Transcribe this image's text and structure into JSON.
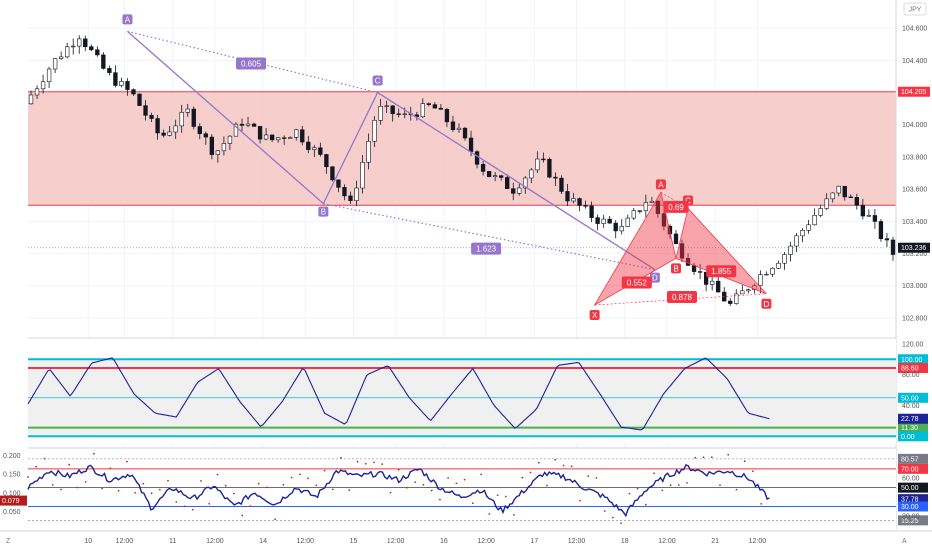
{
  "header": {
    "currency": "JPY"
  },
  "corner_labels": {
    "left": "Z",
    "right": "A"
  },
  "chart_data": [
    {
      "type": "candlestick",
      "panel": "price",
      "ylim": [
        102.7,
        104.75
      ],
      "y_ticks": [
        104.6,
        104.4,
        104.2,
        104.0,
        103.8,
        103.6,
        103.4,
        103.2,
        103.0,
        102.8
      ],
      "y_tick_labels": [
        "104.600",
        "104.400",
        "104.200",
        "104.000",
        "103.800",
        "103.600",
        "103.400",
        "103.200",
        "103.000",
        "102.800"
      ],
      "price_tags": [
        {
          "value": 104.205,
          "label": "104.205",
          "color": "#f23645"
        },
        {
          "value": 103.236,
          "label": "103.236",
          "color": "#131722"
        }
      ],
      "supply_zone": {
        "top": 104.205,
        "bottom": 103.5,
        "color": "#f4c7c3",
        "border": "#f23645"
      },
      "last_price": 103.236,
      "bars": 144,
      "path": [
        104.13,
        104.38,
        104.56,
        104.32,
        104.18,
        103.92,
        104.08,
        103.82,
        104.02,
        103.9,
        103.96,
        103.78,
        103.5,
        104.1,
        104.05,
        104.12,
        103.95,
        103.7,
        103.6,
        103.78,
        103.55,
        103.42,
        103.35,
        103.55,
        103.25,
        103.05,
        102.88,
        103.05,
        103.2,
        103.42,
        103.6,
        103.45,
        103.2
      ],
      "xlim": [
        0,
        144
      ],
      "x_ticks": [
        10,
        16,
        24,
        31,
        39,
        46,
        54,
        61,
        69,
        76,
        84,
        91,
        99,
        106,
        114,
        121
      ],
      "x_tick_labels": [
        "10",
        "12:00",
        "11",
        "12:00",
        "14",
        "12:00",
        "15",
        "12:00",
        "16",
        "12:00",
        "17",
        "12:00",
        "18",
        "12:00",
        "21",
        "12:00"
      ],
      "bearish_pattern": {
        "points": [
          {
            "label": "A",
            "x": 16.5,
            "y": 104.58
          },
          {
            "label": "B",
            "x": 49,
            "y": 103.51
          },
          {
            "label": "C",
            "x": 58,
            "y": 104.2
          },
          {
            "label": "D",
            "x": 104,
            "y": 103.1
          }
        ],
        "ratios": [
          {
            "label": "0.605",
            "x": 37,
            "y": 104.38
          },
          {
            "label": "1.623",
            "x": 76,
            "y": 103.23
          }
        ],
        "color": "#9575cd"
      },
      "harmonic_pattern": {
        "points": [
          {
            "label": "X",
            "x": 94,
            "y": 102.88
          },
          {
            "label": "A",
            "x": 105,
            "y": 103.58
          },
          {
            "label": "B",
            "x": 107.5,
            "y": 103.17
          },
          {
            "label": "C",
            "x": 109.5,
            "y": 103.48
          },
          {
            "label": "D",
            "x": 122.5,
            "y": 102.95
          }
        ],
        "ratios": [
          {
            "label": "0.552",
            "x": 101,
            "y": 103.02
          },
          {
            "label": "0.69",
            "x": 107.5,
            "y": 103.49
          },
          {
            "label": "1.855",
            "x": 115,
            "y": 103.09
          },
          {
            "label": "0.878",
            "x": 108.5,
            "y": 102.93
          }
        ],
        "color": "#f23645"
      }
    },
    {
      "type": "line",
      "panel": "oscillator_1",
      "ylim": [
        -10,
        125
      ],
      "y_ticks": [
        120,
        80,
        40
      ],
      "y_tick_labels": [
        "120.00",
        "80.00",
        "40.00"
      ],
      "levels": [
        {
          "value": 100,
          "label": "100.00",
          "color": "#00bcd4"
        },
        {
          "value": 88.6,
          "label": "88.60",
          "color": "#f23645"
        },
        {
          "value": 50,
          "label": "50.00",
          "color": "#00bcd4"
        },
        {
          "value": 11.3,
          "label": "11.30",
          "color": "#4caf50"
        },
        {
          "value": 0,
          "label": "0.00",
          "color": "#00bcd4"
        }
      ],
      "current": {
        "value": 22.78,
        "label": "22.78"
      },
      "series": [
        {
          "name": "",
          "path": [
            42,
            88,
            52,
            95,
            102,
            55,
            30,
            25,
            70,
            88,
            45,
            12,
            45,
            90,
            30,
            15,
            80,
            92,
            50,
            20,
            55,
            88,
            40,
            10,
            35,
            92,
            96,
            55,
            12,
            8,
            55,
            88,
            102,
            75,
            30,
            22.78
          ]
        }
      ]
    },
    {
      "type": "line",
      "panel": "oscillator_2",
      "ylim": [
        0.0,
        0.215
      ],
      "y_ticks": [
        0.2,
        0.15,
        0.1,
        0.05
      ],
      "y_tick_labels": [
        "0.200",
        "0.150",
        "0.100",
        "0.050"
      ],
      "left_tag": {
        "value": 0.079,
        "label": "0.079"
      },
      "levels": [
        {
          "value": 80.57,
          "label": "80.57",
          "color": "#787b86"
        },
        {
          "value": 70.0,
          "label": "70.00",
          "color": "#f23645"
        },
        {
          "value": 50.0,
          "label": "50.00",
          "color": "#131722"
        },
        {
          "value": 37.78,
          "label": "37.78",
          "color": "#1e2396"
        },
        {
          "value": 30.0,
          "label": "30.00",
          "color": "#2962ff"
        },
        {
          "value": 15.25,
          "label": "15.25",
          "color": "#787b86"
        }
      ],
      "right_ticks": [
        {
          "value": 60,
          "label": "60.00"
        },
        {
          "value": 20,
          "label": "20.00"
        }
      ],
      "series": [
        {
          "name": "",
          "path": [
            50,
            68,
            62,
            72,
            58,
            65,
            28,
            50,
            38,
            52,
            30,
            45,
            32,
            50,
            40,
            68,
            62,
            65,
            58,
            70,
            50,
            40,
            48,
            25,
            45,
            65,
            62,
            50,
            40,
            22,
            48,
            62,
            72,
            65,
            68,
            60,
            37.78
          ]
        }
      ]
    }
  ]
}
